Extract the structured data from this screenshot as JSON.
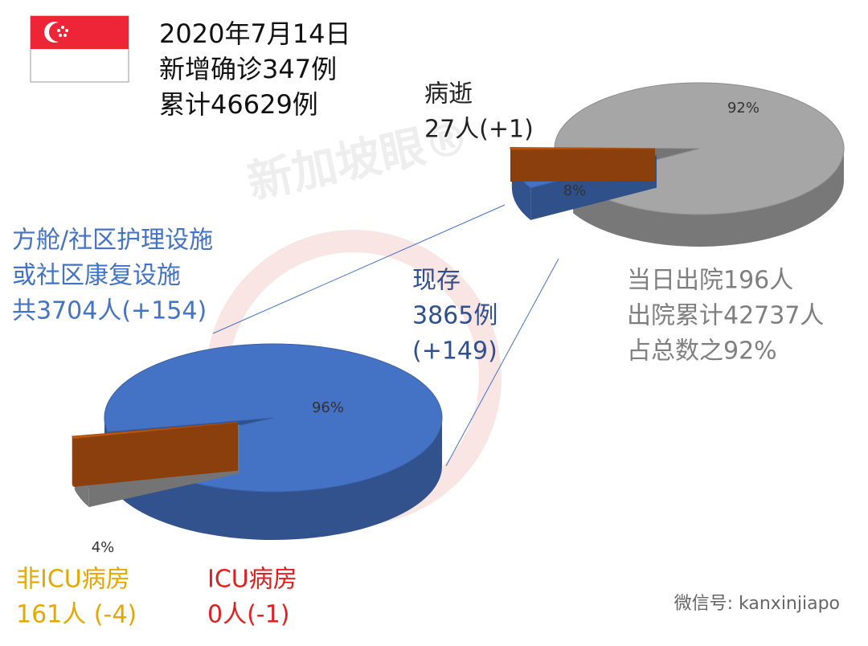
{
  "header": {
    "lines": [
      "2020年7月14日",
      "新增确诊347例",
      "累计46629例"
    ]
  },
  "chart_data": [
    {
      "type": "pie",
      "values": [
        92,
        8,
        0.5
      ],
      "value_labels": [
        "92%",
        "8%",
        null
      ],
      "colors": [
        "#a6a6a6",
        "#4472c4",
        "#c55a11"
      ],
      "annotations": [
        {
          "lines": [
            "病逝",
            "27人(+1)"
          ],
          "color": "#222222"
        },
        {
          "lines": [
            "当日出院196人",
            "出院累计42737人",
            "占总数之92%"
          ],
          "color": "#7f7f7f"
        }
      ]
    },
    {
      "type": "pie",
      "values": [
        96,
        4,
        0.5
      ],
      "value_labels": [
        "96%",
        "4%",
        null
      ],
      "colors": [
        "#4472c4",
        "#a6a6a6",
        "#c55a11"
      ],
      "annotations": [
        {
          "lines": [
            "方舱/社区护理设施",
            "或社区康复设施",
            "共3704人(+154)"
          ],
          "color": "#4472c4"
        },
        {
          "lines": [
            "现存",
            "3865例",
            "(+149)"
          ],
          "color": "#2f4f8f"
        },
        {
          "lines": [
            "非ICU病房",
            "161人 (-4)"
          ],
          "color": "#e6a800"
        },
        {
          "lines": [
            "ICU病房",
            "0人(-1)"
          ],
          "color": "#e02020"
        }
      ]
    }
  ],
  "watermark": "新加坡眼®",
  "footer": "微信号: kanxinjiapo"
}
